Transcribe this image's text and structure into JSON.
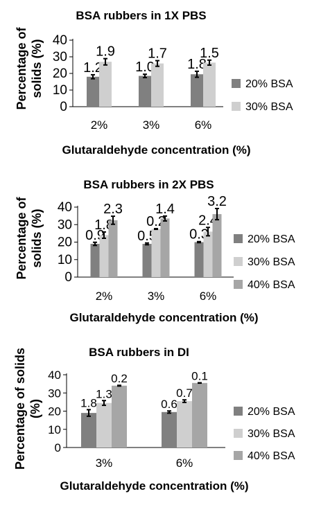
{
  "chart_data": [
    {
      "type": "bar",
      "title": "BSA rubbers in 1X PBS",
      "xlabel": "Glutaraldehyde concentration (%)",
      "ylabel_lines": [
        "Percentage of",
        "solids (%)"
      ],
      "categories": [
        "2%",
        "3%",
        "6%"
      ],
      "ylim": [
        0,
        40
      ],
      "yticks": [
        0,
        10,
        20,
        30,
        40
      ],
      "legend_position": "right",
      "series": [
        {
          "name": "20% BSA",
          "color": "#808080",
          "values": [
            18,
            18.5,
            19.5
          ],
          "errors": [
            1.2,
            1.0,
            1.8
          ],
          "labels": [
            "1.2",
            "1.0",
            "1.8"
          ]
        },
        {
          "name": "30% BSA",
          "color": "#cfcfcf",
          "values": [
            27,
            26,
            26.5
          ],
          "errors": [
            1.9,
            1.7,
            1.5
          ],
          "labels": [
            "1.9",
            "1.7",
            "1.5"
          ]
        }
      ]
    },
    {
      "type": "bar",
      "title": "BSA rubbers in 2X PBS",
      "xlabel": "Glutaraldehyde concentration (%)",
      "ylabel_lines": [
        "Percentage of",
        "solids (%)"
      ],
      "categories": [
        "2%",
        "3%",
        "6%"
      ],
      "ylim": [
        0,
        40
      ],
      "yticks": [
        0,
        10,
        20,
        30,
        40
      ],
      "legend_position": "right",
      "series": [
        {
          "name": "20% BSA",
          "color": "#808080",
          "values": [
            19,
            19,
            20
          ],
          "errors": [
            0.9,
            0.5,
            0.3
          ],
          "labels": [
            "0.9",
            "0.5",
            "0.3"
          ]
        },
        {
          "name": "30% BSA",
          "color": "#cfcfcf",
          "values": [
            24,
            27.5,
            26
          ],
          "errors": [
            1.8,
            0.2,
            2.4
          ],
          "labels": [
            "1.8",
            "0.2",
            "2.4"
          ]
        },
        {
          "name": "40% BSA",
          "color": "#a6a6a6",
          "values": [
            32.5,
            33.5,
            36
          ],
          "errors": [
            2.3,
            1.4,
            3.2
          ],
          "labels": [
            "2.3",
            "1.4",
            "3.2"
          ]
        }
      ]
    },
    {
      "type": "bar",
      "title": "BSA rubbers in DI",
      "xlabel": "Glutaraldehyde concentration (%)",
      "ylabel_lines": [
        "Percentage of solids",
        "(%)"
      ],
      "categories": [
        "3%",
        "6%"
      ],
      "ylim": [
        0,
        40
      ],
      "yticks": [
        0,
        10,
        20,
        30,
        40
      ],
      "legend_position": "right",
      "series": [
        {
          "name": "20% BSA",
          "color": "#808080",
          "values": [
            19,
            19.5
          ],
          "errors": [
            1.8,
            0.6
          ],
          "labels": [
            "1.8",
            "0.6"
          ]
        },
        {
          "name": "30% BSA",
          "color": "#cfcfcf",
          "values": [
            24.5,
            25.5
          ],
          "errors": [
            1.3,
            0.7
          ],
          "labels": [
            "1.3",
            "0.7"
          ]
        },
        {
          "name": "40% BSA",
          "color": "#a6a6a6",
          "values": [
            34,
            35.5
          ],
          "errors": [
            0.2,
            0.1
          ],
          "labels": [
            "0.2",
            "0.1"
          ]
        }
      ]
    }
  ]
}
